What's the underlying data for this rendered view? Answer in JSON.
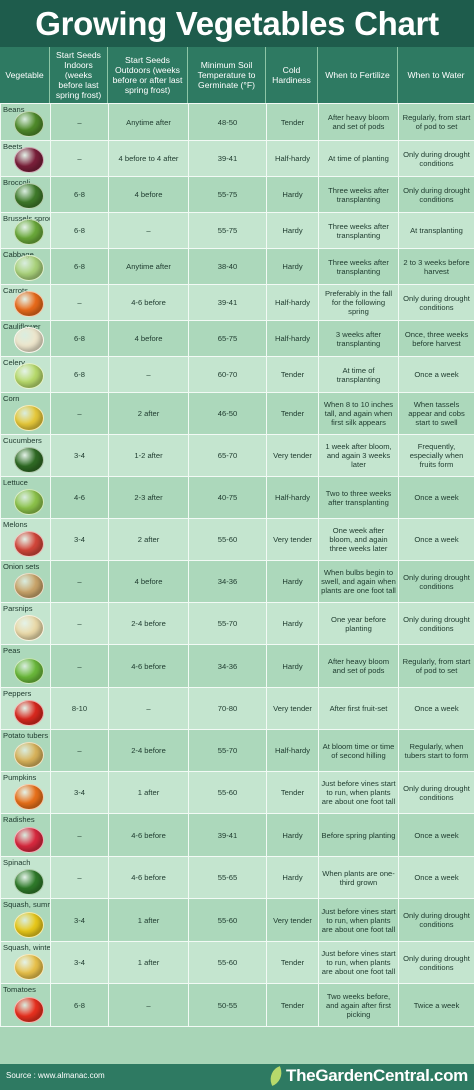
{
  "title": "Growing Vegetables Chart",
  "headers": [
    "Vegetable",
    "Start Seeds Indoors (weeks before last spring frost)",
    "Start Seeds Outdoors (weeks before or after last spring frost)",
    "Minimum Soil Temperature to Germinate (°F)",
    "Cold Hardiness",
    "When to Fertilize",
    "When to Water"
  ],
  "rows": [
    {
      "name": "Beans",
      "indoors": "–",
      "outdoors": "Anytime after",
      "temp": "48-50",
      "hardiness": "Tender",
      "fertilize": "After heavy bloom and set of pods",
      "water": "Regularly, from start of pod to set",
      "icon_color": "#4f8a2a"
    },
    {
      "name": "Beets",
      "indoors": "–",
      "outdoors": "4 before to 4 after",
      "temp": "39-41",
      "hardiness": "Half-hardy",
      "fertilize": "At time of planting",
      "water": "Only during drought conditions",
      "icon_color": "#7a1f3a"
    },
    {
      "name": "Broccoli",
      "indoors": "6-8",
      "outdoors": "4 before",
      "temp": "55-75",
      "hardiness": "Hardy",
      "fertilize": "Three weeks after transplanting",
      "water": "Only during drought conditions",
      "icon_color": "#3f7a2a"
    },
    {
      "name": "Brussels sprouts",
      "indoors": "6-8",
      "outdoors": "–",
      "temp": "55-75",
      "hardiness": "Hardy",
      "fertilize": "Three weeks after transplanting",
      "water": "At transplanting",
      "icon_color": "#6aa83a"
    },
    {
      "name": "Cabbage",
      "indoors": "6-8",
      "outdoors": "Anytime after",
      "temp": "38-40",
      "hardiness": "Hardy",
      "fertilize": "Three weeks after transplanting",
      "water": "2 to 3 weeks before harvest",
      "icon_color": "#a9d17a"
    },
    {
      "name": "Carrots",
      "indoors": "–",
      "outdoors": "4-6 before",
      "temp": "39-41",
      "hardiness": "Half-hardy",
      "fertilize": "Preferably in the fall for the following spring",
      "water": "Only during drought conditions",
      "icon_color": "#e86a1a"
    },
    {
      "name": "Cauliflower",
      "indoors": "6-8",
      "outdoors": "4 before",
      "temp": "65-75",
      "hardiness": "Half-hardy",
      "fertilize": "3 weeks after transplanting",
      "water": "Once, three weeks before harvest",
      "icon_color": "#eee6cc"
    },
    {
      "name": "Celery",
      "indoors": "6-8",
      "outdoors": "–",
      "temp": "60-70",
      "hardiness": "Tender",
      "fertilize": "At time of transplanting",
      "water": "Once a week",
      "icon_color": "#b7d96b"
    },
    {
      "name": "Corn",
      "indoors": "–",
      "outdoors": "2 after",
      "temp": "46-50",
      "hardiness": "Tender",
      "fertilize": "When 8 to 10 inches tall, and again when first silk appears",
      "water": "When tassels appear and cobs start to swell",
      "icon_color": "#e6c83a"
    },
    {
      "name": "Cucumbers",
      "indoors": "3-4",
      "outdoors": "1-2 after",
      "temp": "65-70",
      "hardiness": "Very tender",
      "fertilize": "1 week after bloom, and again 3 weeks later",
      "water": "Frequently, especially when fruits form",
      "icon_color": "#2f6a24"
    },
    {
      "name": "Lettuce",
      "indoors": "4-6",
      "outdoors": "2-3 after",
      "temp": "40-75",
      "hardiness": "Half-hardy",
      "fertilize": "Two to three weeks after transplanting",
      "water": "Once a week",
      "icon_color": "#8cc24a"
    },
    {
      "name": "Melons",
      "indoors": "3-4",
      "outdoors": "2 after",
      "temp": "55-60",
      "hardiness": "Very tender",
      "fertilize": "One week after bloom, and again three weeks later",
      "water": "Once a week",
      "icon_color": "#d2463a"
    },
    {
      "name": "Onion sets",
      "indoors": "–",
      "outdoors": "4 before",
      "temp": "34-36",
      "hardiness": "Hardy",
      "fertilize": "When bulbs begin to swell, and again when plants are one foot tall",
      "water": "Only during drought conditions",
      "icon_color": "#c9a46a"
    },
    {
      "name": "Parsnips",
      "indoors": "–",
      "outdoors": "2-4 before",
      "temp": "55-70",
      "hardiness": "Hardy",
      "fertilize": "One year before planting",
      "water": "Only during drought conditions",
      "icon_color": "#ead9a8"
    },
    {
      "name": "Peas",
      "indoors": "–",
      "outdoors": "4-6 before",
      "temp": "34-36",
      "hardiness": "Hardy",
      "fertilize": "After heavy bloom and set of pods",
      "water": "Regularly, from start of pod to set",
      "icon_color": "#6ab83a"
    },
    {
      "name": "Peppers",
      "indoors": "8-10",
      "outdoors": "–",
      "temp": "70-80",
      "hardiness": "Very tender",
      "fertilize": "After first fruit-set",
      "water": "Once a week",
      "icon_color": "#d8281e"
    },
    {
      "name": "Potato tubers",
      "indoors": "–",
      "outdoors": "2-4 before",
      "temp": "55-70",
      "hardiness": "Half-hardy",
      "fertilize": "At bloom time or time of second hilling",
      "water": "Regularly, when tubers start to form",
      "icon_color": "#d8b25a"
    },
    {
      "name": "Pumpkins",
      "indoors": "3-4",
      "outdoors": "1 after",
      "temp": "55-60",
      "hardiness": "Tender",
      "fertilize": "Just before vines start to run, when plants are about one foot tall",
      "water": "Only during drought conditions",
      "icon_color": "#e8701a"
    },
    {
      "name": "Radishes",
      "indoors": "–",
      "outdoors": "4-6 before",
      "temp": "39-41",
      "hardiness": "Hardy",
      "fertilize": "Before spring planting",
      "water": "Once a week",
      "icon_color": "#d8283e"
    },
    {
      "name": "Spinach",
      "indoors": "–",
      "outdoors": "4-6 before",
      "temp": "55-65",
      "hardiness": "Hardy",
      "fertilize": "When plants are one-third grown",
      "water": "Once a week",
      "icon_color": "#2f7a2a"
    },
    {
      "name": "Squash, summer",
      "indoors": "3-4",
      "outdoors": "1 after",
      "temp": "55-60",
      "hardiness": "Very tender",
      "fertilize": "Just before vines start to run, when plants are about one foot tall",
      "water": "Only during drought conditions",
      "icon_color": "#e8c81a"
    },
    {
      "name": "Squash, winter",
      "indoors": "3-4",
      "outdoors": "1 after",
      "temp": "55-60",
      "hardiness": "Tender",
      "fertilize": "Just before vines start to run, when plants are about one foot tall",
      "water": "Only during drought conditions",
      "icon_color": "#e8c04a"
    },
    {
      "name": "Tomatoes",
      "indoors": "6-8",
      "outdoors": "–",
      "temp": "50-55",
      "hardiness": "Tender",
      "fertilize": "Two weeks before, and again after first picking",
      "water": "Twice a week",
      "icon_color": "#e8301e"
    }
  ],
  "footer": {
    "source": "Source : www.almanac.com",
    "brand": "TheGardenCentral.com"
  }
}
